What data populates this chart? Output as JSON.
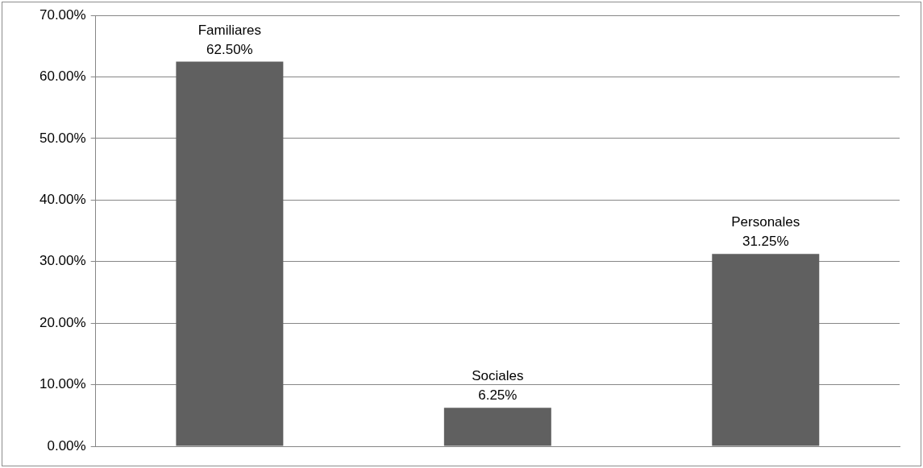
{
  "chart_data": {
    "type": "bar",
    "categories": [
      "Familiares",
      "Sociales",
      "Personales"
    ],
    "values": [
      62.5,
      6.25,
      31.25
    ],
    "value_labels": [
      "62.50%",
      "6.25%",
      "31.25%"
    ],
    "color": "#606060",
    "ylim": [
      0,
      70
    ],
    "yticks": [
      {
        "value": 0,
        "label": "0.00%"
      },
      {
        "value": 10,
        "label": "10.00%"
      },
      {
        "value": 20,
        "label": "20.00%"
      },
      {
        "value": 30,
        "label": "30.00%"
      },
      {
        "value": 40,
        "label": "40.00%"
      },
      {
        "value": 50,
        "label": "50.00%"
      },
      {
        "value": 60,
        "label": "60.00%"
      },
      {
        "value": 70,
        "label": "70.00%"
      }
    ],
    "grid": "y",
    "tick_labels": "y",
    "legend": false
  }
}
